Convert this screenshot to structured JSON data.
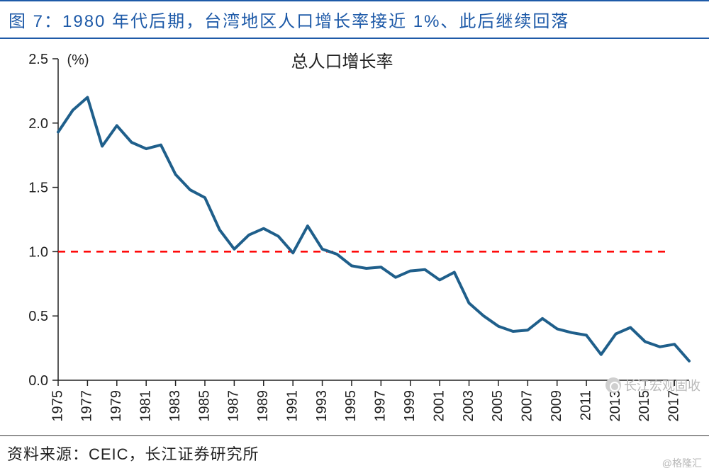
{
  "title": "图 7：1980 年代后期，台湾地区人口增长率接近 1%、此后继续回落",
  "source": "资料来源：CEIC，长江证券研究所",
  "watermark_main": "长江宏观固收",
  "watermark_corner": "@格隆汇",
  "chart": {
    "type": "line",
    "legend_label": "总人口增长率",
    "y_unit_label": "(%)",
    "background_color": "#ffffff",
    "axis_color": "#222222",
    "tick_font_size": 20,
    "legend_font_size": 24,
    "line_color": "#1f5f8b",
    "line_width": 4,
    "ref_line_color": "#ff0000",
    "ref_line_width": 2.5,
    "ref_line_dash": "10,8",
    "ref_line_y": 1.0,
    "ylim": [
      0.0,
      2.5
    ],
    "ytick_step": 0.5,
    "xlim": [
      1975,
      2018
    ],
    "xtick_step": 2,
    "xtick_rotation": -90,
    "series": {
      "years": [
        1975,
        1976,
        1977,
        1978,
        1979,
        1980,
        1981,
        1982,
        1983,
        1984,
        1985,
        1986,
        1987,
        1988,
        1989,
        1990,
        1991,
        1992,
        1993,
        1994,
        1995,
        1996,
        1997,
        1998,
        1999,
        2000,
        2001,
        2002,
        2003,
        2004,
        2005,
        2006,
        2007,
        2008,
        2009,
        2010,
        2011,
        2012,
        2013,
        2014,
        2015,
        2016,
        2017,
        2018
      ],
      "values": [
        1.93,
        2.1,
        2.2,
        1.82,
        1.98,
        1.85,
        1.8,
        1.83,
        1.6,
        1.48,
        1.42,
        1.17,
        1.02,
        1.13,
        1.18,
        1.12,
        0.99,
        1.2,
        1.02,
        0.98,
        0.89,
        0.87,
        0.88,
        0.8,
        0.85,
        0.86,
        0.78,
        0.84,
        0.6,
        0.5,
        0.42,
        0.38,
        0.39,
        0.48,
        0.4,
        0.37,
        0.35,
        0.2,
        0.36,
        0.41,
        0.3,
        0.26,
        0.28,
        0.15
      ]
    }
  },
  "colors": {
    "title_color": "#1e5aa8",
    "title_border": "#1e5aa8",
    "text_color": "#222222",
    "watermark_color": "#b8b8b8"
  }
}
